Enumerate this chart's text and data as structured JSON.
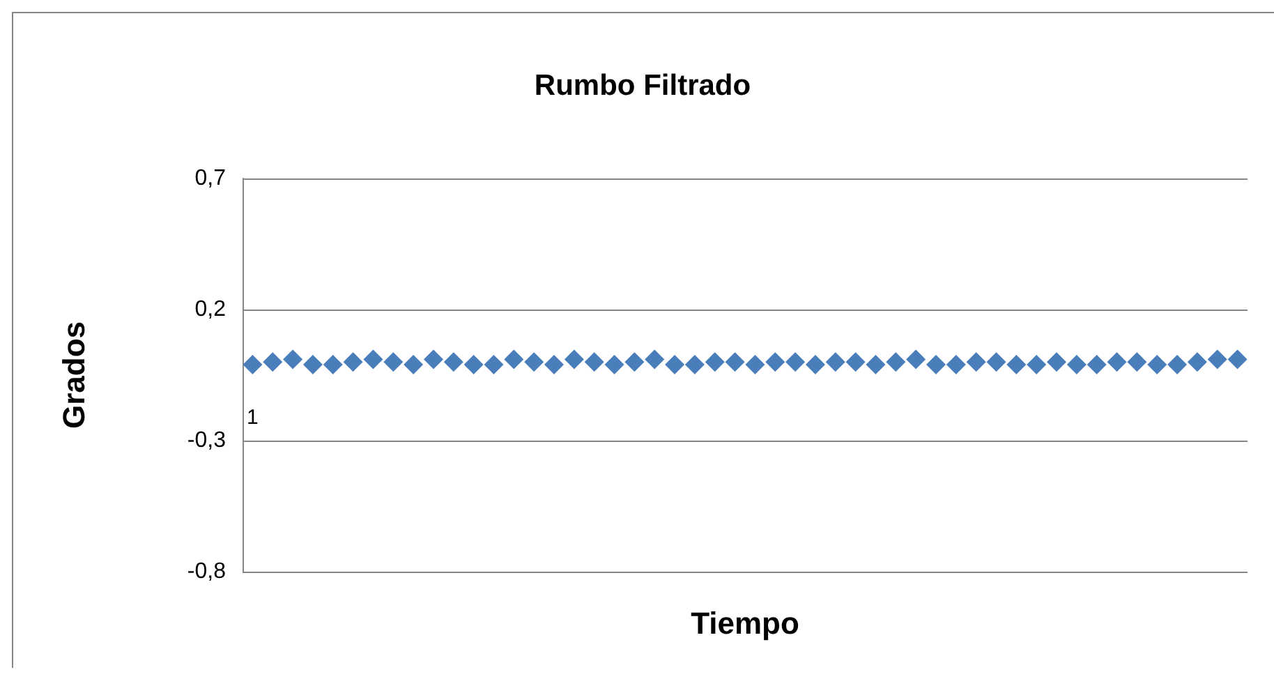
{
  "chart_data": {
    "type": "scatter",
    "title": "Rumbo Filtrado",
    "xlabel": "Tiempo",
    "ylabel": "Grados",
    "categories": [
      "1",
      null,
      null,
      null,
      null,
      null,
      null,
      null,
      null,
      null,
      null,
      null,
      null,
      null,
      null,
      null,
      null,
      null,
      null,
      null,
      null,
      null,
      null,
      null,
      null,
      null,
      null,
      null,
      null,
      null,
      null,
      null,
      null,
      null,
      null,
      null,
      null,
      null,
      null,
      null,
      null,
      null,
      null,
      null,
      null,
      null,
      null,
      null,
      null,
      null
    ],
    "series": [
      {
        "color": "#4a7ebb",
        "values": [
          -0.01,
          0,
          0.01,
          -0.01,
          -0.01,
          0,
          0.01,
          0,
          -0.01,
          0.01,
          0,
          -0.01,
          -0.01,
          0.01,
          0,
          -0.01,
          0.01,
          0,
          -0.01,
          0,
          0.01,
          -0.01,
          -0.01,
          0,
          0,
          -0.01,
          0,
          0,
          -0.01,
          0,
          0,
          -0.01,
          0,
          0.01,
          -0.01,
          -0.01,
          0,
          0,
          -0.01,
          -0.01,
          0,
          -0.01,
          -0.01,
          0,
          0,
          -0.01,
          -0.01,
          0,
          0.01,
          0.01
        ]
      }
    ],
    "ylim": [
      -0.8,
      0.7
    ],
    "yticks": [
      {
        "value": -0.8,
        "label": "-0,8"
      },
      {
        "value": -0.3,
        "label": "-0,3"
      },
      {
        "value": 0.2,
        "label": "0,2"
      },
      {
        "value": 0.7,
        "label": "0,7"
      }
    ],
    "grid": "y",
    "marker": "diamond"
  }
}
